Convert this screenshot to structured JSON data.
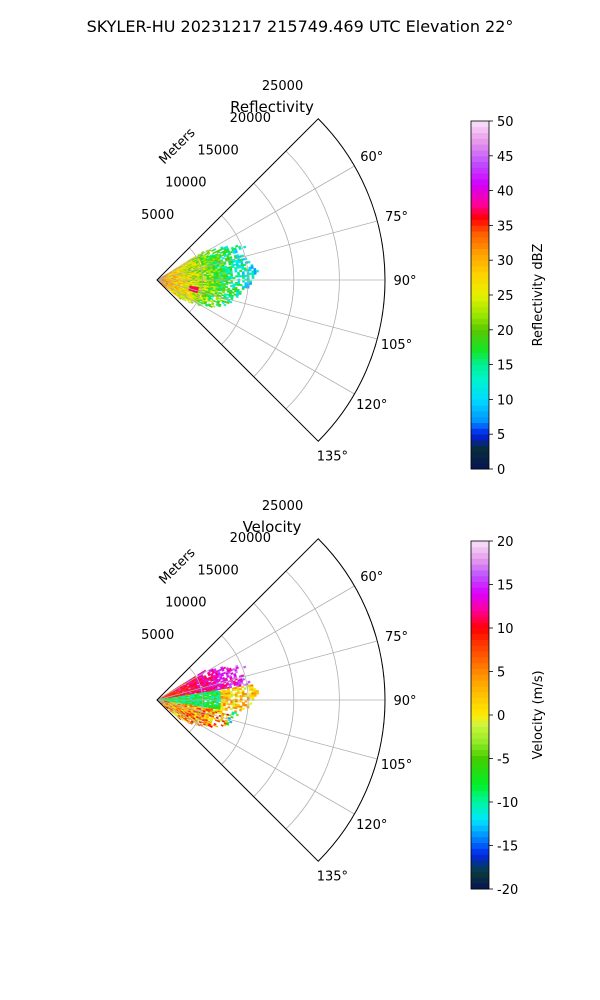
{
  "suptitle": "SKYLER-HU  20231217  215749.469 UTC Elevation 22°",
  "chart_data": [
    {
      "type": "heatmap",
      "title": "Reflectivity",
      "radial_axis_label": "Meters",
      "radial_ticks": [
        5000,
        10000,
        15000,
        20000,
        25000
      ],
      "radial_tick_labels": [
        "5000",
        "10000",
        "15000",
        "20000",
        "25000"
      ],
      "rlim": [
        0,
        25000
      ],
      "azimuth_range_deg": [
        45,
        135
      ],
      "azimuth_ticks": [
        60,
        75,
        90,
        105,
        120,
        135
      ],
      "azimuth_tick_labels": [
        "60°",
        "75°",
        "90°",
        "105°",
        "120°",
        "135°"
      ],
      "grid": true,
      "colorbar": {
        "label": "Reflectivity dBZ",
        "range": [
          0,
          50
        ],
        "ticks": [
          0,
          5,
          10,
          15,
          20,
          25,
          30,
          35,
          40,
          45,
          50
        ],
        "tick_labels": [
          "0",
          "5",
          "10",
          "15",
          "20",
          "25",
          "30",
          "35",
          "40",
          "45",
          "50"
        ],
        "colormap": "NWS reflectivity (dark blue→cyan→green→yellow→orange→red→magenta→light pink)"
      },
      "data_extent": {
        "azimuth_deg": [
          58,
          130
        ],
        "range_m": [
          0,
          11000
        ],
        "typical_value_near_radar_dbz": [
          25,
          35
        ],
        "typical_value_far_dbz": [
          10,
          20
        ],
        "max_observed_dbz": 40
      }
    },
    {
      "type": "heatmap",
      "title": "Velocity",
      "radial_axis_label": "Meters",
      "radial_ticks": [
        5000,
        10000,
        15000,
        20000,
        25000
      ],
      "radial_tick_labels": [
        "5000",
        "10000",
        "15000",
        "20000",
        "25000"
      ],
      "rlim": [
        0,
        25000
      ],
      "azimuth_range_deg": [
        45,
        135
      ],
      "azimuth_ticks": [
        60,
        75,
        90,
        105,
        120,
        135
      ],
      "azimuth_tick_labels": [
        "60°",
        "75°",
        "90°",
        "105°",
        "120°",
        "135°"
      ],
      "grid": true,
      "colorbar": {
        "label": "Velocity (m/s)",
        "range": [
          -20,
          20
        ],
        "ticks": [
          -20,
          -15,
          -10,
          -5,
          0,
          5,
          10,
          15,
          20
        ],
        "tick_labels": [
          "-20",
          "-15",
          "-10",
          "-5",
          "0",
          "5",
          "10",
          "15",
          "20"
        ],
        "colormap": "velocity (dark blue→cyan→green→yellow→orange→red→magenta→light pink)"
      },
      "data_extent": {
        "azimuth_deg": [
          58,
          130
        ],
        "range_m": [
          0,
          11000
        ],
        "north_sector_velocity_ms": [
          5,
          15
        ],
        "center_sector_velocity_ms": [
          -10,
          0
        ],
        "south_sector_velocity_ms": [
          0,
          15
        ]
      }
    }
  ]
}
